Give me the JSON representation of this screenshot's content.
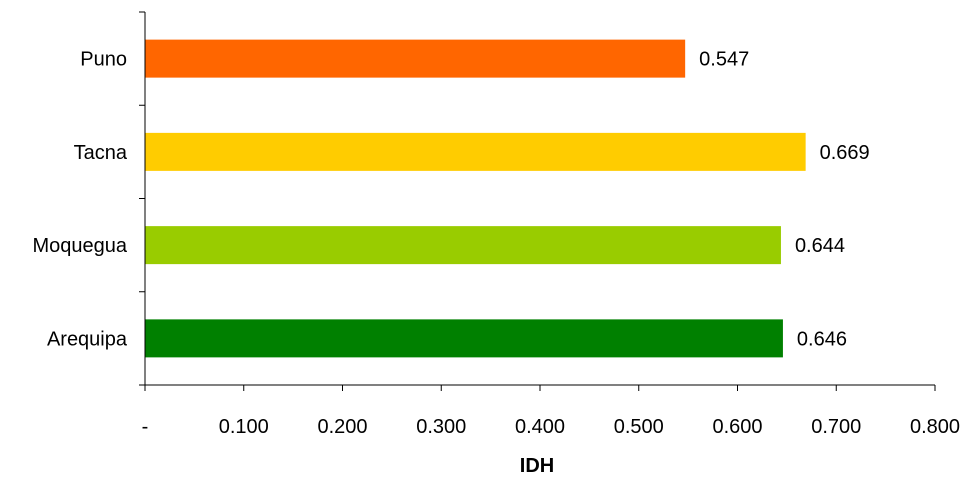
{
  "chart_data": {
    "type": "bar",
    "orientation": "horizontal",
    "categories": [
      "Arequipa",
      "Moquegua",
      "Tacna",
      "Puno"
    ],
    "values": [
      0.646,
      0.644,
      0.669,
      0.547
    ],
    "data_labels": [
      "0.646",
      "0.644",
      "0.669",
      "0.547"
    ],
    "colors": [
      "#008000",
      "#99CC00",
      "#FFCC00",
      "#FF6600"
    ],
    "xlabel": "IDH",
    "ylabel": "",
    "title": "",
    "xlim": [
      0,
      0.8
    ],
    "x_ticks": [
      0,
      0.1,
      0.2,
      0.3,
      0.4,
      0.5,
      0.6,
      0.7,
      0.8
    ],
    "x_tick_labels": [
      "-",
      "0.100",
      "0.200",
      "0.300",
      "0.400",
      "0.500",
      "0.600",
      "0.700",
      "0.800"
    ],
    "grid": false,
    "legend": "none"
  }
}
